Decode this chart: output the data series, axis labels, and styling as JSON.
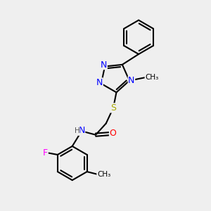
{
  "background_color": "#efefef",
  "bond_color": "#000000",
  "atom_colors": {
    "N": "#0000ff",
    "S": "#aaaa00",
    "O": "#ff0000",
    "F": "#ff00ff",
    "C": "#000000",
    "H": "#555555"
  },
  "font_size_atom": 9,
  "font_size_small": 7.5,
  "figsize": [
    3.0,
    3.0
  ],
  "dpi": 100,
  "xlim": [
    0,
    10
  ],
  "ylim": [
    0,
    10
  ]
}
